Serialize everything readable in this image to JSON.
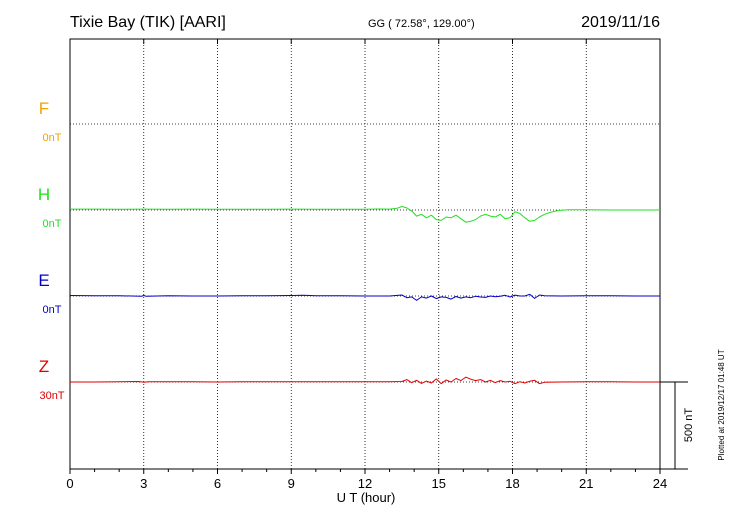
{
  "header": {
    "station": "Tixie Bay (TIK)  [AARI]",
    "coords": "GG ( 72.58°, 129.00°)",
    "date": "2019/11/16"
  },
  "side_note": "Plotted at 2019/12/17 01:48 UT",
  "scale_label": "500 nT",
  "chart_data": {
    "type": "line",
    "xlabel": "U T (hour)",
    "xlim": [
      0,
      24
    ],
    "xticks": [
      0,
      3,
      6,
      9,
      12,
      15,
      18,
      21,
      24
    ],
    "xtick_labels": [
      "0",
      "3",
      "6",
      "9",
      "12",
      "15",
      "18",
      "21",
      "24"
    ],
    "scale_bar_nT": 500,
    "channels": [
      {
        "name": "F",
        "baseline_label": "0nT",
        "color": "#f2a300",
        "series": []
      },
      {
        "name": "H",
        "baseline_label": "0nT",
        "color": "#22e022",
        "x": [
          0,
          1,
          2,
          3,
          4,
          5,
          6,
          7,
          8,
          9,
          10,
          11,
          12,
          12.5,
          13,
          13.3,
          13.5,
          13.7,
          13.9,
          14.1,
          14.3,
          14.5,
          14.7,
          14.9,
          15.1,
          15.3,
          15.5,
          15.7,
          15.9,
          16.1,
          16.3,
          16.5,
          16.7,
          16.9,
          17.1,
          17.3,
          17.5,
          17.7,
          17.9,
          18.1,
          18.3,
          18.5,
          18.7,
          18.9,
          19.1,
          19.3,
          19.5,
          19.7,
          19.9,
          20.1,
          20.3,
          20.5,
          21,
          22,
          23,
          24
        ],
        "values": [
          5,
          5,
          4,
          5,
          4,
          5,
          4,
          4,
          4,
          5,
          4,
          4,
          4,
          6,
          5,
          10,
          20,
          12,
          -5,
          -35,
          -25,
          -45,
          -30,
          -55,
          -60,
          -40,
          -45,
          -30,
          -50,
          -70,
          -65,
          -55,
          -35,
          -25,
          -35,
          -40,
          -25,
          -50,
          -45,
          -10,
          -20,
          -45,
          -65,
          -60,
          -40,
          -25,
          -15,
          -8,
          -3,
          0,
          2,
          1,
          1,
          0,
          0,
          0
        ]
      },
      {
        "name": "E",
        "baseline_label": "0nT",
        "color": "#0000c8",
        "x": [
          0,
          1,
          2,
          2.9,
          3.0,
          3.1,
          4,
          5,
          6,
          7,
          8,
          9,
          9.5,
          10,
          11,
          12,
          13,
          13.5,
          13.7,
          13.9,
          14.1,
          14.3,
          14.5,
          14.7,
          14.9,
          15.1,
          15.3,
          15.5,
          15.7,
          15.9,
          16.1,
          16.3,
          16.5,
          16.7,
          16.9,
          17.1,
          17.3,
          17.5,
          17.7,
          17.9,
          18.1,
          18.3,
          18.5,
          18.7,
          18.9,
          19.1,
          19.3,
          20,
          21,
          22,
          23,
          24
        ],
        "values": [
          3,
          2,
          2,
          -2,
          3,
          -2,
          1,
          0,
          0,
          1,
          2,
          3,
          4,
          2,
          1,
          0,
          0,
          6,
          -10,
          -5,
          -25,
          -5,
          -12,
          0,
          -15,
          -5,
          -8,
          -18,
          -3,
          -12,
          -5,
          -10,
          -2,
          -6,
          -8,
          0,
          -4,
          -2,
          4,
          -6,
          5,
          0,
          0,
          10,
          -14,
          6,
          2,
          0,
          1,
          1,
          0,
          0
        ]
      },
      {
        "name": "Z",
        "baseline_label": "30nT",
        "color": "#e00000",
        "x": [
          0,
          1,
          2,
          2.8,
          3.0,
          3.2,
          4,
          5,
          6,
          7,
          8,
          9,
          10,
          11,
          12,
          13,
          13.5,
          13.7,
          13.9,
          14.1,
          14.3,
          14.5,
          14.7,
          14.9,
          15.1,
          15.3,
          15.5,
          15.7,
          15.9,
          16.1,
          16.3,
          16.5,
          16.7,
          16.9,
          17.1,
          17.3,
          17.5,
          17.7,
          17.9,
          18.1,
          18.3,
          18.5,
          18.7,
          18.9,
          19.1,
          19.3,
          20,
          21,
          22,
          23,
          24
        ],
        "values": [
          0,
          0,
          1,
          3,
          -1,
          2,
          1,
          1,
          0,
          1,
          1,
          1,
          2,
          1,
          1,
          2,
          3,
          14,
          -4,
          10,
          -8,
          5,
          -6,
          18,
          -10,
          12,
          0,
          20,
          8,
          28,
          16,
          8,
          14,
          0,
          10,
          -4,
          8,
          0,
          4,
          -10,
          2,
          -6,
          4,
          10,
          -10,
          -2,
          0,
          1,
          1,
          0,
          0
        ]
      }
    ]
  }
}
